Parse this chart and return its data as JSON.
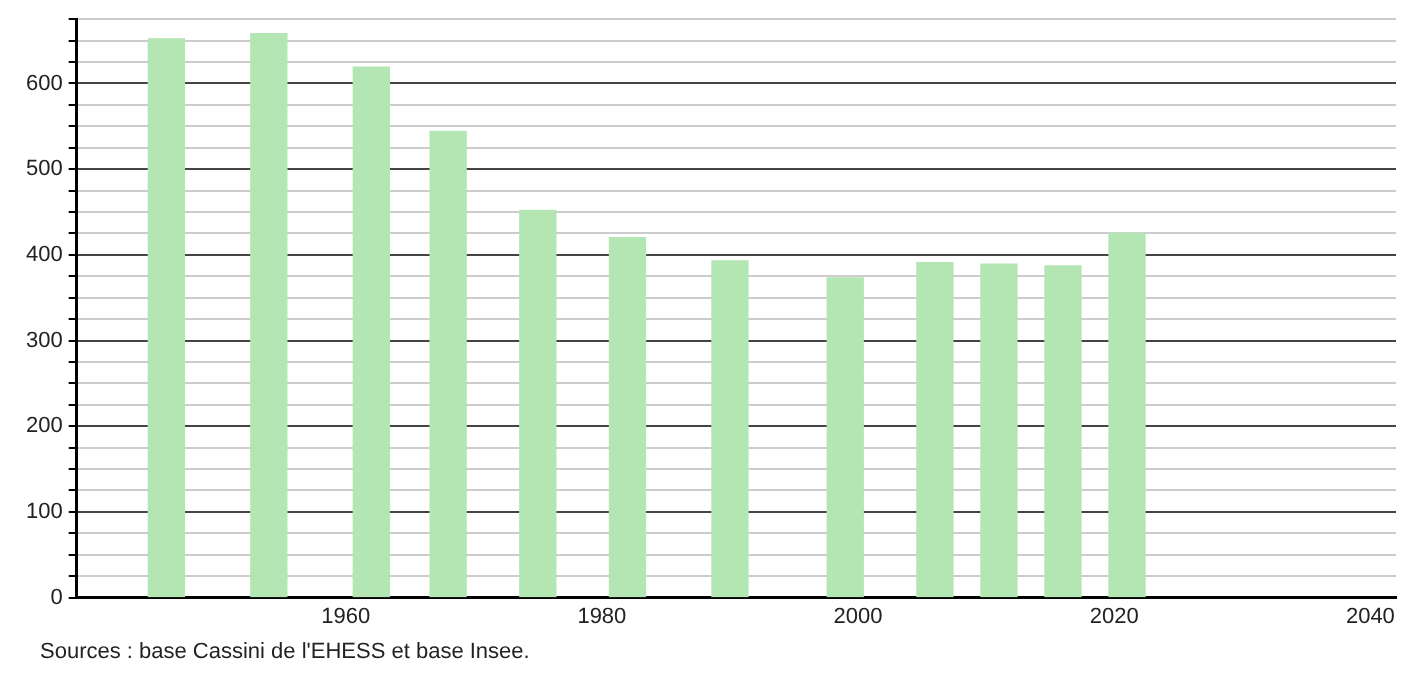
{
  "chart_data": {
    "type": "bar",
    "x": [
      1946,
      1954,
      1962,
      1968,
      1975,
      1982,
      1990,
      1999,
      2006,
      2011,
      2016,
      2021
    ],
    "values": [
      652,
      658,
      619,
      544,
      452,
      420,
      393,
      373,
      391,
      389,
      387,
      425
    ],
    "color": "#b3e6b3",
    "xlim": [
      1939,
      2042
    ],
    "xticks": [
      1960,
      1980,
      2000,
      2020,
      2040
    ],
    "ylim": [
      0,
      675
    ],
    "yticks": [
      0,
      {
        "value": 25,
        "label": null
      },
      {
        "value": 50,
        "label": null
      },
      {
        "value": 75,
        "label": null
      },
      100,
      {
        "value": 125,
        "label": null
      },
      {
        "value": 150,
        "label": null
      },
      {
        "value": 175,
        "label": null
      },
      200,
      {
        "value": 225,
        "label": null
      },
      {
        "value": 250,
        "label": null
      },
      {
        "value": 275,
        "label": null
      },
      300,
      {
        "value": 325,
        "label": null
      },
      {
        "value": 350,
        "label": null
      },
      {
        "value": 375,
        "label": null
      },
      400,
      {
        "value": 425,
        "label": null
      },
      {
        "value": 450,
        "label": null
      },
      {
        "value": 475,
        "label": null
      },
      500,
      {
        "value": 525,
        "label": null
      },
      {
        "value": 550,
        "label": null
      },
      {
        "value": 575,
        "label": null
      },
      600,
      {
        "value": 625,
        "label": null
      },
      {
        "value": 650,
        "label": null
      },
      {
        "value": 675,
        "label": null
      }
    ],
    "grid": "y",
    "legend": false,
    "annotations": [
      "Sources : base Cassini de l'EHESS et base Insee."
    ]
  }
}
